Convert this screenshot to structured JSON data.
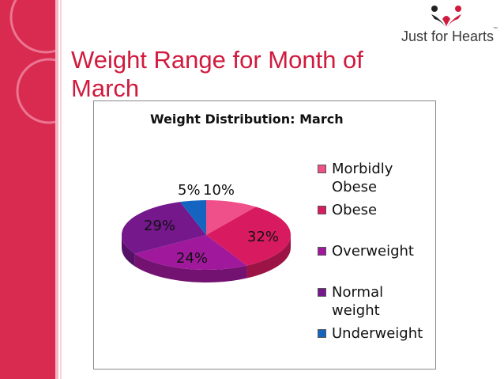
{
  "slide": {
    "title": "Weight Range for Month of March",
    "logo_text": "Just for Hearts",
    "logo_tm": "™"
  },
  "colors": {
    "band": "#d92a50",
    "title": "#d01a3e"
  },
  "chart_data": {
    "type": "pie",
    "title": "Weight Distribution: March",
    "legend_position": "right",
    "three_d": true,
    "slices": [
      {
        "name": "Morbidly Obese",
        "value": 10,
        "label": "10%",
        "color": "#f0508a"
      },
      {
        "name": "Obese",
        "value": 32,
        "label": "32%",
        "color": "#d81b60"
      },
      {
        "name": "Overweight",
        "value": 24,
        "label": "24%",
        "color": "#a0199c"
      },
      {
        "name": "Normal weight",
        "value": 29,
        "label": "29%",
        "color": "#74188c"
      },
      {
        "name": "Underweight",
        "value": 5,
        "label": "5%",
        "color": "#1565c0"
      }
    ]
  }
}
